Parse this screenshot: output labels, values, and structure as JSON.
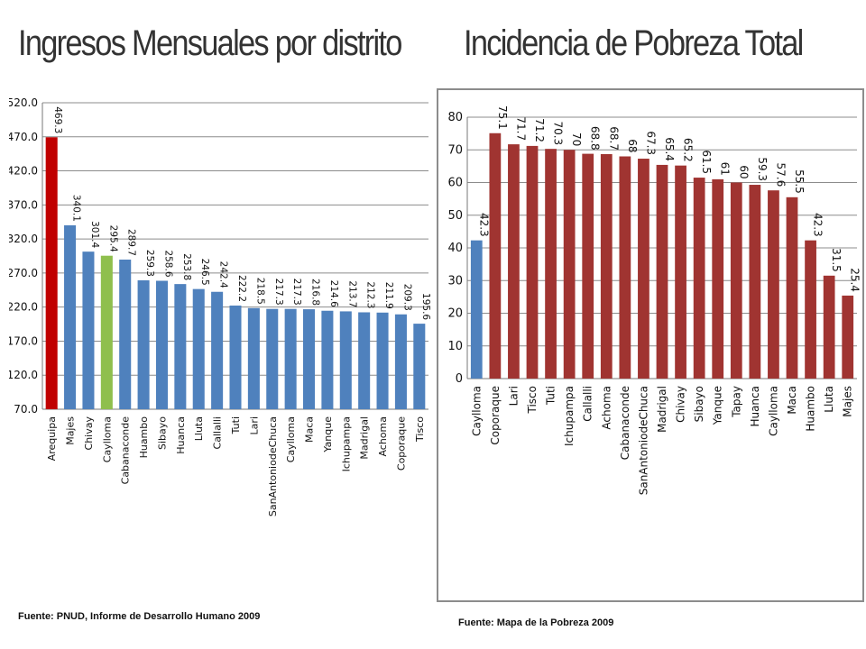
{
  "left": {
    "title": "Ingresos Mensuales por distrito",
    "source": "Fuente: PNUD, Informe de Desarrollo Humano 2009"
  },
  "right": {
    "title": "Incidencia de Pobreza Total",
    "source": "Fuente: Mapa de la Pobreza 2009"
  },
  "chart_data": [
    {
      "type": "bar",
      "title": "Ingresos Mensuales por distrito",
      "categories": [
        "Arequipa",
        "Majes",
        "Chivay",
        "Caylloma",
        "Cabanaconde",
        "Huambo",
        "Sibayo",
        "Huanca",
        "Lluta",
        "Callalli",
        "Tuti",
        "Lari",
        "SanAntoniodeChuca",
        "Caylloma",
        "Maca",
        "Yanque",
        "Ichupampa",
        "Madrigal",
        "Achoma",
        "Coporaque",
        "Tisco"
      ],
      "values": [
        469.3,
        340.1,
        301.4,
        295.4,
        289.7,
        259.3,
        258.6,
        253.8,
        246.5,
        242.4,
        222.2,
        218.5,
        217.3,
        217.3,
        216.8,
        214.6,
        213.7,
        212.3,
        211.9,
        209.3,
        195.6
      ],
      "value_labels": [
        "469.3",
        "340.1",
        "301.4",
        "295.4",
        "289.7",
        "259.3",
        "258.6",
        "253.8",
        "246.5",
        "242.4",
        "222.2",
        "218.5",
        "217.3",
        "217.3",
        "216.8",
        "214.6",
        "213.7",
        "212.3",
        "211.9",
        "209.3",
        "195.6"
      ],
      "bar_colors": [
        "#c00000",
        "#4f81bd",
        "#4f81bd",
        "#8fbf4d",
        "#4f81bd",
        "#4f81bd",
        "#4f81bd",
        "#4f81bd",
        "#4f81bd",
        "#4f81bd",
        "#4f81bd",
        "#4f81bd",
        "#4f81bd",
        "#4f81bd",
        "#4f81bd",
        "#4f81bd",
        "#4f81bd",
        "#4f81bd",
        "#4f81bd",
        "#4f81bd",
        "#4f81bd"
      ],
      "yticks": [
        "70.0",
        "120.0",
        "170.0",
        "220.0",
        "270.0",
        "320.0",
        "370.0",
        "420.0",
        "470.0",
        "520.0"
      ],
      "ylim": [
        70,
        520
      ],
      "grid": true
    },
    {
      "type": "bar",
      "title": "Incidencia de Pobreza Total",
      "categories": [
        "Caylloma",
        "Coporaque",
        "Lari",
        "Tisco",
        "Tuti",
        "Ichupampa",
        "Callalli",
        "Achoma",
        "Cabanaconde",
        "SanAntoniodeChuca",
        "Madrigal",
        "Chivay",
        "Sibayo",
        "Yanque",
        "Tapay",
        "Huanca",
        "Caylloma",
        "Maca",
        "Huambo",
        "Lluta",
        "Majes"
      ],
      "values": [
        42.3,
        75.1,
        71.7,
        71.2,
        70.3,
        70,
        68.8,
        68.7,
        68,
        67.3,
        65.4,
        65.2,
        61.5,
        61,
        60,
        59.3,
        57.6,
        55.5,
        42.3,
        31.5,
        25.4
      ],
      "value_labels": [
        "42.3",
        "75.1",
        "71.7",
        "71.2",
        "70.3",
        "70",
        "68.8",
        "68.7",
        "68",
        "67.3",
        "65.4",
        "65.2",
        "61.5",
        "61",
        "60",
        "59.3",
        "57.6",
        "55.5",
        "42.3",
        "31.5",
        "25.4"
      ],
      "bar_colors": [
        "#4f81bd",
        "#a03431",
        "#a03431",
        "#a03431",
        "#a03431",
        "#a03431",
        "#a03431",
        "#a03431",
        "#a03431",
        "#a03431",
        "#a03431",
        "#a03431",
        "#a03431",
        "#a03431",
        "#a03431",
        "#a03431",
        "#a03431",
        "#a03431",
        "#a03431",
        "#a03431",
        "#a03431"
      ],
      "yticks": [
        "0",
        "10",
        "20",
        "30",
        "40",
        "50",
        "60",
        "70",
        "80"
      ],
      "ylim": [
        0,
        80
      ],
      "grid": true
    }
  ]
}
